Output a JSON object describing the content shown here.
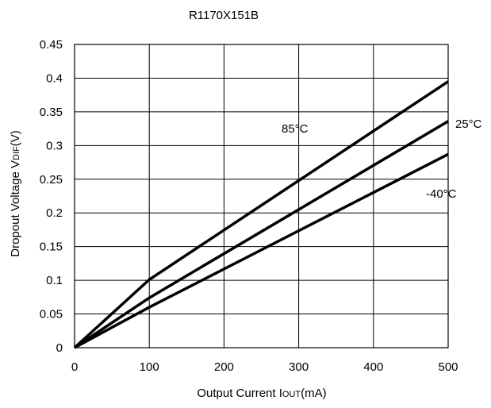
{
  "chart_data": {
    "type": "line",
    "title": "R1170X151B",
    "xlabel": {
      "main": "Output Current I",
      "sub": "OUT",
      "unit": "(mA)"
    },
    "ylabel": {
      "main": "Dropout Voltage V",
      "sub": "DIF",
      "unit": "(V)"
    },
    "xlim": [
      0,
      500
    ],
    "ylim": [
      0,
      0.45
    ],
    "x_ticks": [
      "0",
      "100",
      "200",
      "300",
      "400",
      "500"
    ],
    "y_ticks": [
      "0",
      "0.05",
      "0.1",
      "0.15",
      "0.2",
      "0.25",
      "0.3",
      "0.35",
      "0.4",
      "0.45"
    ],
    "grid": true,
    "series": [
      {
        "name": "85°C",
        "x": [
          0,
          100,
          500
        ],
        "y": [
          0,
          0.101,
          0.395
        ]
      },
      {
        "name": "25°C",
        "x": [
          0,
          100,
          500
        ],
        "y": [
          0,
          0.074,
          0.336
        ]
      },
      {
        "name": "-40°C",
        "x": [
          0,
          100,
          500
        ],
        "y": [
          0,
          0.06,
          0.287
        ]
      }
    ]
  }
}
